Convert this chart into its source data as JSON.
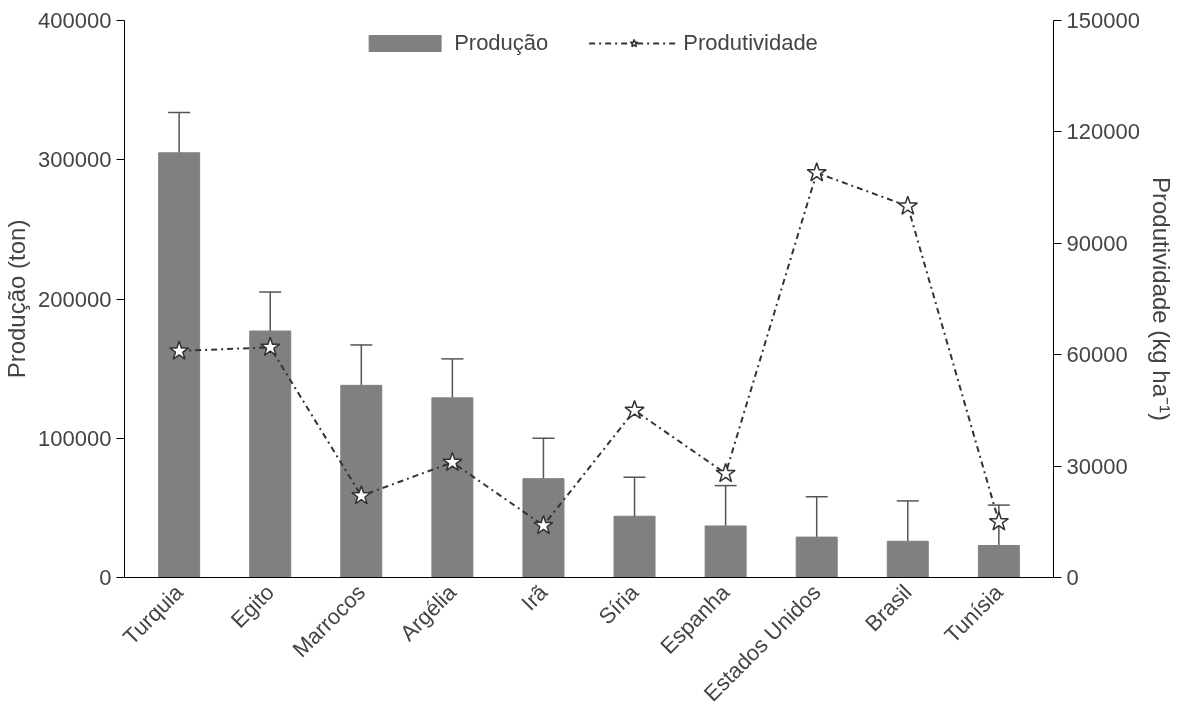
{
  "chart_data": {
    "type": "bar",
    "categories": [
      "Turquia",
      "Egito",
      "Marrocos",
      "Argélia",
      "Irã",
      "Síria",
      "Espanha",
      "Estados Unidos",
      "Brasil",
      "Tunísia"
    ],
    "ylabel": "Produção (ton)",
    "y2label": "Produtividade (kg ha⁻¹)",
    "ylim": [
      0,
      400000
    ],
    "yticks": [
      0,
      100000,
      200000,
      300000,
      400000
    ],
    "y2lim": [
      0,
      150000
    ],
    "y2ticks": [
      0,
      30000,
      60000,
      90000,
      120000,
      150000
    ],
    "grid": false,
    "legend": "top",
    "series": [
      {
        "name": "Produção",
        "color": "#808080",
        "values": [
          305000,
          177000,
          138000,
          129000,
          71000,
          44000,
          37000,
          29000,
          26000,
          23000
        ],
        "errors": [
          29000,
          28000,
          29000,
          28000,
          29000,
          28000,
          29000,
          29000,
          29000,
          29000
        ]
      },
      {
        "name": "Produtividade",
        "type": "line",
        "axis": "y2",
        "color": "#333333",
        "marker": "star",
        "line_style": "dashdot",
        "values": [
          61000,
          62000,
          22000,
          31000,
          14000,
          45000,
          28000,
          109000,
          100000,
          15000
        ]
      }
    ]
  }
}
